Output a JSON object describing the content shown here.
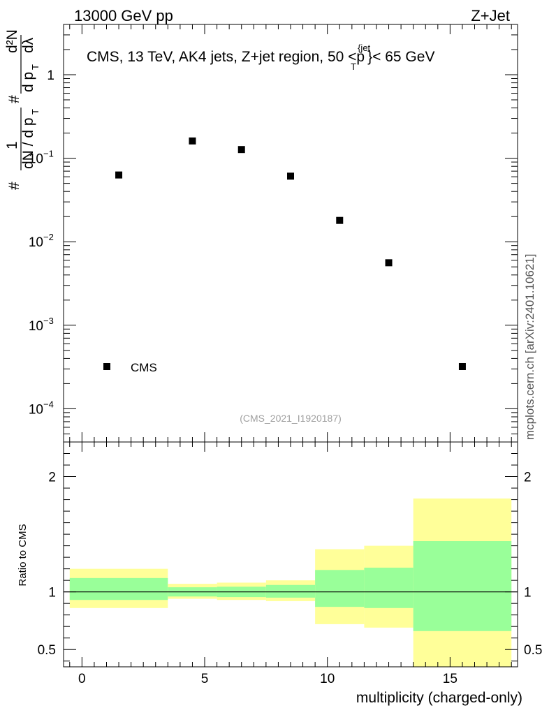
{
  "header": {
    "left_label": "13000 GeV pp",
    "right_label": "Z+Jet",
    "watermark": "mcplots.cern.ch [arXiv:2401.10621]",
    "analysis_id": "(CMS_2021_I1920187)"
  },
  "main_panel": {
    "title": "CMS, 13 TeV, AK4 jets, Z+jet region, 50 <",
    "title_pt": "p",
    "title_sup": "{jet",
    "title_sub": "T",
    "title_end": "}< 65 GeV",
    "ylabel_parts": [
      "#",
      "1",
      "dN / d p",
      "T",
      "#",
      "d p",
      "T",
      "d²N",
      "dλ"
    ],
    "legend_label": "CMS"
  },
  "ratio_panel": {
    "ylabel": "Ratio to CMS"
  },
  "colors": {
    "outer_band": "#ffff99",
    "inner_band": "#99ff99",
    "marker": "#000000"
  },
  "chart_data": [
    {
      "type": "scatter",
      "title": "CMS, 13 TeV, AK4 jets, Z+jet region, 50 < p_T^{jet} < 65 GeV",
      "xlabel": "multiplicity (charged-only)",
      "ylabel": "(1/dN/dp_T) d²N/(dp_T dλ)",
      "yscale": "log",
      "xlim": [
        -0.75,
        17.75
      ],
      "ylim": [
        4e-05,
        4
      ],
      "y_ticks": [
        {
          "value": 0.0001,
          "mant": "10",
          "exp": "−4"
        },
        {
          "value": 0.001,
          "mant": "10",
          "exp": "−3"
        },
        {
          "value": 0.01,
          "mant": "10",
          "exp": "−2"
        },
        {
          "value": 0.1,
          "mant": "10",
          "exp": "−1"
        },
        {
          "value": 1,
          "mant": "1",
          "exp": ""
        }
      ],
      "series": [
        {
          "name": "CMS",
          "x": [
            1.5,
            4.5,
            6.5,
            8.5,
            10.5,
            12.5,
            15.5
          ],
          "y": [
            0.063,
            0.161,
            0.127,
            0.061,
            0.018,
            0.0056,
            0.00032
          ]
        }
      ]
    },
    {
      "type": "area",
      "title": "Ratio to CMS",
      "xlabel": "multiplicity (charged-only)",
      "ylabel": "Ratio to CMS",
      "xlim": [
        -0.75,
        17.75
      ],
      "ylim": [
        0.35,
        2.3
      ],
      "x_ticks": [
        0,
        5,
        10,
        15
      ],
      "y_ticks": [
        0.5,
        1,
        2
      ],
      "bins": [
        {
          "x0": -0.5,
          "x1": 3.5,
          "outer": [
            0.86,
            1.2
          ],
          "inner": [
            0.93,
            1.12
          ]
        },
        {
          "x0": 3.5,
          "x1": 5.5,
          "outer": [
            0.94,
            1.07
          ],
          "inner": [
            0.96,
            1.04
          ]
        },
        {
          "x0": 5.5,
          "x1": 7.5,
          "outer": [
            0.93,
            1.08
          ],
          "inner": [
            0.955,
            1.045
          ]
        },
        {
          "x0": 7.5,
          "x1": 9.5,
          "outer": [
            0.92,
            1.1
          ],
          "inner": [
            0.95,
            1.06
          ]
        },
        {
          "x0": 9.5,
          "x1": 11.5,
          "outer": [
            0.72,
            1.37
          ],
          "inner": [
            0.87,
            1.19
          ]
        },
        {
          "x0": 11.5,
          "x1": 13.5,
          "outer": [
            0.69,
            1.4
          ],
          "inner": [
            0.86,
            1.21
          ]
        },
        {
          "x0": 13.5,
          "x1": 17.5,
          "outer": [
            0.35,
            1.81
          ],
          "inner": [
            0.66,
            1.44
          ]
        }
      ]
    }
  ]
}
